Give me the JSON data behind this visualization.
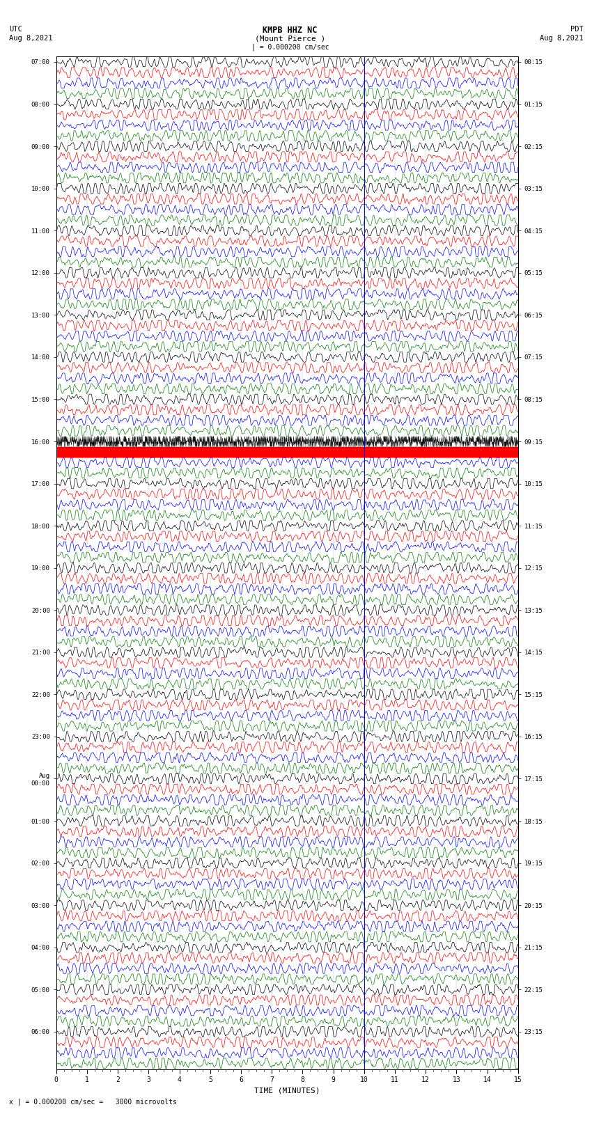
{
  "title_center": "KMPB HHZ NC",
  "title_sub": "(Mount Pierce )",
  "title_left_top": "UTC",
  "title_left_bot": "Aug 8,2021",
  "title_right_top": "PDT",
  "title_right_bot": "Aug 8,2021",
  "scale_label": "| = 0.000200 cm/sec",
  "bottom_label": "x | = 0.000200 cm/sec =   3000 microvolts",
  "xlabel": "TIME (MINUTES)",
  "utc_labels": [
    "07:00",
    "08:00",
    "09:00",
    "10:00",
    "11:00",
    "12:00",
    "13:00",
    "14:00",
    "15:00",
    "16:00",
    "17:00",
    "18:00",
    "19:00",
    "20:00",
    "21:00",
    "22:00",
    "23:00",
    "Aug\n00:00",
    "01:00",
    "02:00",
    "03:00",
    "04:00",
    "05:00",
    "06:00"
  ],
  "pdt_labels": [
    "00:15",
    "01:15",
    "02:15",
    "03:15",
    "04:15",
    "05:15",
    "06:15",
    "07:15",
    "08:15",
    "09:15",
    "10:15",
    "11:15",
    "12:15",
    "13:15",
    "14:15",
    "15:15",
    "16:15",
    "17:15",
    "18:15",
    "19:15",
    "20:15",
    "21:15",
    "22:15",
    "23:15"
  ],
  "trace_colors_cycle": [
    "black",
    "red",
    "blue",
    "green"
  ],
  "n_hours": 24,
  "n_traces_per_hour": 4,
  "n_minutes": 15,
  "samples_per_row": 1800,
  "bg_color": "white",
  "xticks": [
    0,
    1,
    2,
    3,
    4,
    5,
    6,
    7,
    8,
    9,
    10,
    11,
    12,
    13,
    14,
    15
  ],
  "vert_line_minute": 10,
  "big_event_hour": 9,
  "big_event_trace": 0,
  "spike_hour": 3,
  "spike_trace": 2,
  "spike_minute": 10.0
}
